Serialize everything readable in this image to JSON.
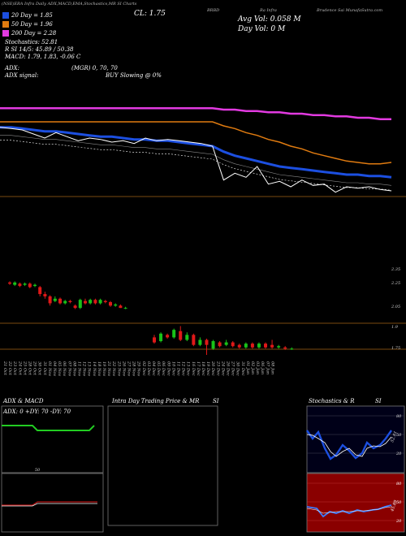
{
  "header": {
    "top_strip": "(NSE)ERA Infra Daily ADX,MACD,EMA,Stochastics,MR SI Charts",
    "symbol": "BRBD",
    "company": "Ra Infra",
    "price_label": "CL: 1.75",
    "moneycontrol": "Brudence Sai MunafaSutra.com",
    "avg_vol": "Avg Vol: 0.058  M",
    "day_vol": "Day Vol: 0   M",
    "ema20": "20  Day = 1.85",
    "ema50": "50  Day = 1.96",
    "ema200": "200  Day = 2.28",
    "stoch": "Stochastics: 52.81",
    "rsi": "R          SI 14/5: 45.89 / 50.38",
    "macd": "MACD: 1.79, 1.83, -0.06  C",
    "adx": "ADX:",
    "adx_sig": "ADX signal:",
    "mrsi": "(MGR) 0, 70, 70",
    "buy": "BUY Slowing @ 0%"
  },
  "colors": {
    "ema20": "#1c4fe0",
    "ema50": "#e07b10",
    "ema200": "#e23ae0",
    "up": "#19c219",
    "down": "#e01818"
  },
  "chart_data": [
    {
      "type": "line",
      "series": [
        {
          "name": "200 Day",
          "values": [
            2.36,
            2.36,
            2.36,
            2.36,
            2.36,
            2.36,
            2.36,
            2.36,
            2.36,
            2.36,
            2.36,
            2.36,
            2.36,
            2.36,
            2.36,
            2.36,
            2.36,
            2.36,
            2.36,
            2.36,
            2.35,
            2.35,
            2.34,
            2.34,
            2.33,
            2.33,
            2.32,
            2.32,
            2.31,
            2.31,
            2.3,
            2.3,
            2.29,
            2.29,
            2.28,
            2.28
          ]
        },
        {
          "name": "50 Day",
          "values": [
            2.26,
            2.26,
            2.26,
            2.26,
            2.26,
            2.26,
            2.26,
            2.26,
            2.26,
            2.26,
            2.26,
            2.26,
            2.26,
            2.26,
            2.26,
            2.26,
            2.26,
            2.26,
            2.26,
            2.26,
            2.23,
            2.21,
            2.18,
            2.16,
            2.13,
            2.11,
            2.08,
            2.06,
            2.03,
            2.01,
            1.99,
            1.97,
            1.96,
            1.95,
            1.95,
            1.96
          ]
        },
        {
          "name": "20 Day",
          "values": [
            2.22,
            2.22,
            2.21,
            2.2,
            2.19,
            2.19,
            2.18,
            2.17,
            2.16,
            2.15,
            2.15,
            2.14,
            2.13,
            2.13,
            2.12,
            2.12,
            2.11,
            2.1,
            2.09,
            2.08,
            2.04,
            2.01,
            1.99,
            1.97,
            1.95,
            1.93,
            1.92,
            1.91,
            1.9,
            1.89,
            1.88,
            1.87,
            1.87,
            1.86,
            1.86,
            1.85
          ]
        },
        {
          "name": "Close",
          "values": [
            2.22,
            2.21,
            2.2,
            2.17,
            2.14,
            2.18,
            2.15,
            2.12,
            2.14,
            2.13,
            2.11,
            2.12,
            2.1,
            2.14,
            2.12,
            2.13,
            2.12,
            2.11,
            2.1,
            2.08,
            1.83,
            1.88,
            1.85,
            1.93,
            1.8,
            1.82,
            1.78,
            1.83,
            1.79,
            1.8,
            1.74,
            1.78,
            1.77,
            1.78,
            1.76,
            1.75
          ]
        }
      ]
    },
    {
      "type": "bar",
      "x": [
        "21 Oct",
        "22 Oct",
        "23 Oct",
        "24 Oct",
        "25 Oct",
        "28 Oct",
        "29 Oct",
        "30 Oct",
        "31 Oct",
        "01 Nov",
        "04 Nov",
        "05 Nov",
        "06 Nov",
        "07 Nov",
        "08 Nov",
        "11 Nov",
        "12 Nov",
        "13 Nov",
        "14 Nov",
        "18 Nov",
        "19 Nov",
        "21 Nov",
        "22 Nov",
        "25 Nov",
        "26 Nov",
        "27 Nov",
        "28 Nov",
        "29 Nov",
        "02 Dec",
        "03 Dec",
        "04 Dec",
        "05 Dec",
        "06 Dec",
        "09 Dec",
        "10 Dec",
        "11 Dec",
        "12 Dec",
        "13 Dec",
        "16 Dec",
        "17 Dec",
        "18 Dec",
        "19 Dec",
        "20 Dec",
        "23 Dec",
        "24 Dec",
        "26 Dec",
        "27 Dec",
        "30 Dec",
        "31 Dec",
        "01 Jan",
        "02 Jan",
        "03 Jan",
        "06 Jan",
        "07 Jan",
        "08 Jan"
      ],
      "y_ticks": [
        "2.35",
        "2.25",
        "2.05",
        "1.9",
        "1.75"
      ],
      "candles_upper": [
        {
          "o": 2.3,
          "c": 2.29,
          "h": 2.31,
          "l": 2.28
        },
        {
          "o": 2.28,
          "c": 2.3,
          "h": 2.31,
          "l": 2.27
        },
        {
          "o": 2.29,
          "c": 2.27,
          "h": 2.3,
          "l": 2.26
        },
        {
          "o": 2.28,
          "c": 2.29,
          "h": 2.3,
          "l": 2.27
        },
        {
          "o": 2.29,
          "c": 2.26,
          "h": 2.3,
          "l": 2.25
        },
        {
          "o": 2.27,
          "c": 2.28,
          "h": 2.29,
          "l": 2.26
        },
        {
          "o": 2.26,
          "c": 2.2,
          "h": 2.27,
          "l": 2.18
        },
        {
          "o": 2.2,
          "c": 2.18,
          "h": 2.22,
          "l": 2.16
        },
        {
          "o": 2.18,
          "c": 2.12,
          "h": 2.19,
          "l": 2.1
        },
        {
          "o": 2.14,
          "c": 2.16,
          "h": 2.18,
          "l": 2.13
        },
        {
          "o": 2.16,
          "c": 2.12,
          "h": 2.17,
          "l": 2.11
        },
        {
          "o": 2.12,
          "c": 2.14,
          "h": 2.15,
          "l": 2.11
        },
        {
          "o": 2.14,
          "c": 2.13,
          "h": 2.15,
          "l": 2.12
        },
        {
          "o": 2.1,
          "c": 2.08,
          "h": 2.11,
          "l": 2.07
        },
        {
          "o": 2.08,
          "c": 2.15,
          "h": 2.16,
          "l": 2.07
        },
        {
          "o": 2.14,
          "c": 2.12,
          "h": 2.16,
          "l": 2.11
        },
        {
          "o": 2.12,
          "c": 2.15,
          "h": 2.16,
          "l": 2.11
        },
        {
          "o": 2.15,
          "c": 2.12,
          "h": 2.16,
          "l": 2.11
        },
        {
          "o": 2.12,
          "c": 2.15,
          "h": 2.16,
          "l": 2.11
        },
        {
          "o": 2.14,
          "c": 2.13,
          "h": 2.15,
          "l": 2.12
        },
        {
          "o": 2.13,
          "c": 2.1,
          "h": 2.14,
          "l": 2.09
        },
        {
          "o": 2.1,
          "c": 2.11,
          "h": 2.12,
          "l": 2.09
        },
        {
          "o": 2.1,
          "c": 2.08,
          "h": 2.11,
          "l": 2.08
        },
        {
          "o": 2.08,
          "c": 2.08,
          "h": 2.09,
          "l": 2.07
        }
      ],
      "candles_lower": [
        {
          "o": 1.86,
          "c": 1.82,
          "h": 1.88,
          "l": 1.81
        },
        {
          "o": 1.83,
          "c": 1.89,
          "h": 1.9,
          "l": 1.82
        },
        {
          "o": 1.88,
          "c": 1.86,
          "h": 1.89,
          "l": 1.85
        },
        {
          "o": 1.86,
          "c": 1.92,
          "h": 1.93,
          "l": 1.85
        },
        {
          "o": 1.91,
          "c": 1.84,
          "h": 1.95,
          "l": 1.83
        },
        {
          "o": 1.84,
          "c": 1.88,
          "h": 1.9,
          "l": 1.83
        },
        {
          "o": 1.88,
          "c": 1.8,
          "h": 1.89,
          "l": 1.79
        },
        {
          "o": 1.8,
          "c": 1.84,
          "h": 1.86,
          "l": 1.79
        },
        {
          "o": 1.84,
          "c": 1.8,
          "h": 1.85,
          "l": 1.72
        },
        {
          "o": 1.77,
          "c": 1.83,
          "h": 1.84,
          "l": 1.76
        },
        {
          "o": 1.82,
          "c": 1.79,
          "h": 1.83,
          "l": 1.78
        },
        {
          "o": 1.8,
          "c": 1.82,
          "h": 1.84,
          "l": 1.79
        },
        {
          "o": 1.82,
          "c": 1.79,
          "h": 1.83,
          "l": 1.78
        },
        {
          "o": 1.8,
          "c": 1.78,
          "h": 1.81,
          "l": 1.77
        },
        {
          "o": 1.78,
          "c": 1.81,
          "h": 1.82,
          "l": 1.77
        },
        {
          "o": 1.81,
          "c": 1.78,
          "h": 1.82,
          "l": 1.77
        },
        {
          "o": 1.78,
          "c": 1.81,
          "h": 1.82,
          "l": 1.77
        },
        {
          "o": 1.81,
          "c": 1.78,
          "h": 1.82,
          "l": 1.77
        },
        {
          "o": 1.8,
          "c": 1.78,
          "h": 1.84,
          "l": 1.77
        },
        {
          "o": 1.78,
          "c": 1.79,
          "h": 1.8,
          "l": 1.77
        },
        {
          "o": 1.78,
          "c": 1.77,
          "h": 1.79,
          "l": 1.76
        },
        {
          "o": 1.77,
          "c": 1.77,
          "h": 1.78,
          "l": 1.76
        }
      ]
    }
  ],
  "panels": {
    "adx": {
      "title": "ADX  & MACD",
      "label": "ADX: 0  +DY: 70  -DY: 70",
      "mid": "50"
    },
    "intra": {
      "title": "Intra  Day Trading Price  & MR",
      "si": "SI"
    },
    "stoch": {
      "title": "Stochastics & R",
      "si": "SI",
      "ticks": [
        "80",
        "50",
        "20"
      ],
      "val": "52.81"
    },
    "rsi": {
      "ticks": [
        "80",
        "50",
        "20"
      ],
      "val": "45.89"
    }
  }
}
